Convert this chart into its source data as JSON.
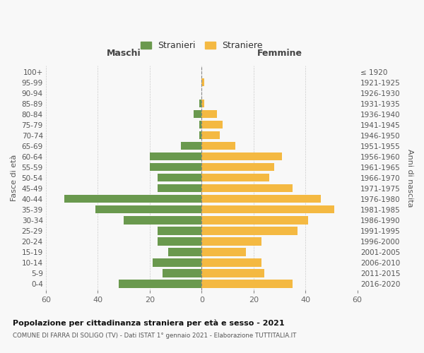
{
  "age_groups": [
    "0-4",
    "5-9",
    "10-14",
    "15-19",
    "20-24",
    "25-29",
    "30-34",
    "35-39",
    "40-44",
    "45-49",
    "50-54",
    "55-59",
    "60-64",
    "65-69",
    "70-74",
    "75-79",
    "80-84",
    "85-89",
    "90-94",
    "95-99",
    "100+"
  ],
  "birth_years": [
    "2016-2020",
    "2011-2015",
    "2006-2010",
    "2001-2005",
    "1996-2000",
    "1991-1995",
    "1986-1990",
    "1981-1985",
    "1976-1980",
    "1971-1975",
    "1966-1970",
    "1961-1965",
    "1956-1960",
    "1951-1955",
    "1946-1950",
    "1941-1945",
    "1936-1940",
    "1931-1935",
    "1926-1930",
    "1921-1925",
    "≤ 1920"
  ],
  "males": [
    32,
    15,
    19,
    13,
    17,
    17,
    30,
    41,
    53,
    17,
    17,
    20,
    20,
    8,
    1,
    1,
    3,
    1,
    0,
    0,
    0
  ],
  "females": [
    35,
    24,
    23,
    17,
    23,
    37,
    41,
    51,
    46,
    35,
    26,
    28,
    31,
    13,
    7,
    8,
    6,
    1,
    0,
    1,
    0
  ],
  "male_color": "#6a994e",
  "female_color": "#f4b942",
  "xlim": 60,
  "title": "Popolazione per cittadinanza straniera per età e sesso - 2021",
  "subtitle": "COMUNE DI FARRA DI SOLIGO (TV) - Dati ISTAT 1° gennaio 2021 - Elaborazione TUTTITALIA.IT",
  "ylabel_left": "Fasce di età",
  "ylabel_right": "Anni di nascita",
  "xlabel_left": "Maschi",
  "xlabel_right": "Femmine",
  "legend_male": "Stranieri",
  "legend_female": "Straniere",
  "bg_color": "#f8f8f8",
  "grid_color": "#cccccc",
  "bar_height": 0.75
}
